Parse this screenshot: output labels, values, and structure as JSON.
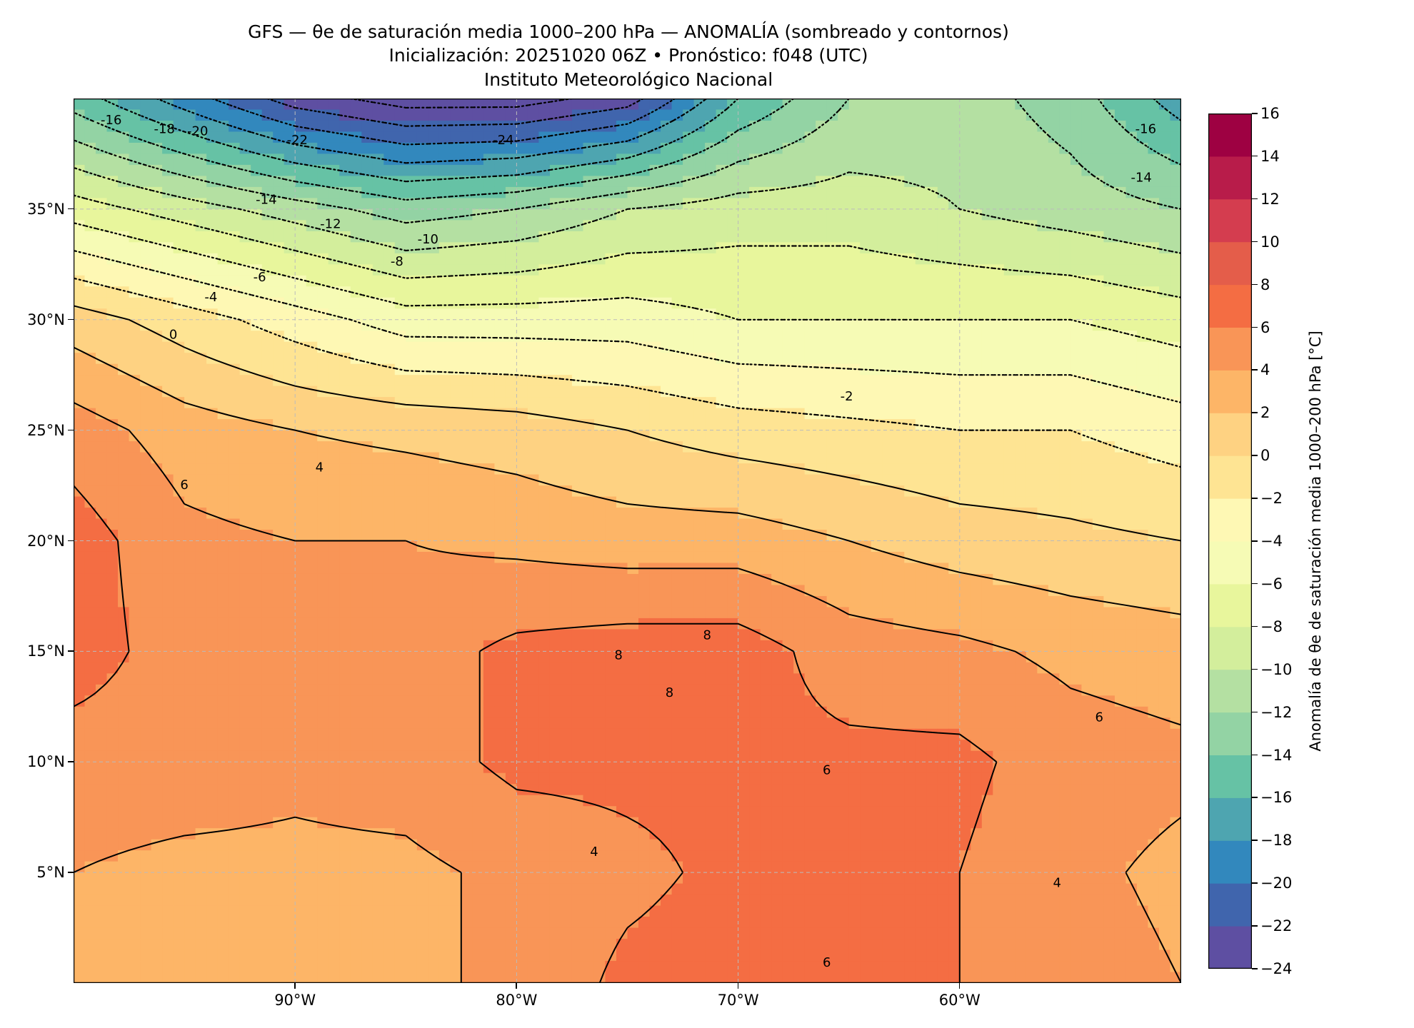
{
  "chart_data": {
    "type": "heatmap",
    "title": "GFS — θe de saturación media 1000–200 hPa — ANOMALÍA (sombreado y contornos)",
    "subtitle": "Inicialización: 20251020 06Z   •   Pronóstico: f048 (UTC)",
    "institution": "Instituto Meteorológico Nacional",
    "xlim": [
      -100,
      -50
    ],
    "ylim": [
      0,
      40
    ],
    "x_ticks": [
      {
        "value": -90,
        "label": "90°W"
      },
      {
        "value": -80,
        "label": "80°W"
      },
      {
        "value": -70,
        "label": "70°W"
      },
      {
        "value": -60,
        "label": "60°W"
      }
    ],
    "y_ticks": [
      {
        "value": 35,
        "label": "35°N"
      },
      {
        "value": 30,
        "label": "30°N"
      },
      {
        "value": 25,
        "label": "25°N"
      },
      {
        "value": 20,
        "label": "20°N"
      },
      {
        "value": 15,
        "label": "15°N"
      },
      {
        "value": 10,
        "label": "10°N"
      },
      {
        "value": 5,
        "label": "5°N"
      }
    ],
    "grid": true,
    "field": {
      "lons": [
        -100,
        -95,
        -90,
        -85,
        -80,
        -75,
        -70,
        -65,
        -60,
        -55,
        -50
      ],
      "lats": [
        40,
        35,
        30,
        25,
        20,
        15,
        10,
        5,
        0
      ],
      "values": [
        [
          -15,
          -19,
          -23,
          -25,
          -25,
          -23,
          -16,
          -12,
          -11,
          -13,
          -17
        ],
        [
          -7,
          -9,
          -11,
          -13,
          -12,
          -10,
          -9,
          -9,
          -10,
          -11,
          -12
        ],
        [
          1,
          -1,
          -3,
          -5,
          -5,
          -5,
          -6,
          -6,
          -6,
          -6,
          -7
        ],
        [
          5,
          3,
          2,
          1.5,
          1,
          0,
          -1,
          -1.5,
          -2,
          -2,
          -3
        ],
        [
          7,
          4.5,
          4,
          4,
          3.5,
          3,
          3,
          2,
          1,
          0.5,
          0
        ],
        [
          7,
          5,
          4.5,
          5,
          6.5,
          7,
          7,
          5,
          4.5,
          3.5,
          3
        ],
        [
          5,
          5,
          4.5,
          5,
          6.5,
          6.5,
          6.5,
          6.5,
          6.5,
          5,
          4.5
        ],
        [
          4,
          3.5,
          3.5,
          3.5,
          4.5,
          5.5,
          6.5,
          6.5,
          6,
          4.5,
          3.5
        ],
        [
          3.5,
          3.5,
          3.5,
          3.5,
          4.5,
          6.5,
          7,
          7,
          6,
          5,
          4
        ]
      ]
    },
    "levels": [
      -24,
      -22,
      -20,
      -18,
      -16,
      -14,
      -12,
      -10,
      -8,
      -6,
      -4,
      -2,
      0,
      2,
      4,
      6,
      8,
      10,
      12,
      14,
      16
    ],
    "colors": [
      "#5e4fa2",
      "#4065ad",
      "#3288bd",
      "#4ea5b0",
      "#66c2a5",
      "#93d3a4",
      "#b4e0a2",
      "#d3ee9c",
      "#e8f69c",
      "#f6fbb5",
      "#fef8b4",
      "#fee493",
      "#fed282",
      "#fdb567",
      "#f99557",
      "#f46d43",
      "#e45d4a",
      "#d43d4f",
      "#b81c4a",
      "#9e0142"
    ],
    "colorbar": {
      "label": "Anomalía de θe de saturación media 1000–200 hPa [°C]",
      "tick_labels": [
        "16",
        "14",
        "12",
        "10",
        "8",
        "6",
        "4",
        "2",
        "0",
        "−2",
        "−4",
        "−6",
        "−8",
        "−10",
        "−12",
        "−14",
        "−16",
        "−18",
        "−20",
        "−22",
        "−24"
      ]
    },
    "contour_labels": [
      {
        "text": "-16",
        "lon": -98.3,
        "lat": 39.0
      },
      {
        "text": "-18",
        "lon": -95.9,
        "lat": 38.6
      },
      {
        "text": "-20",
        "lon": -94.4,
        "lat": 38.5
      },
      {
        "text": "-22",
        "lon": -89.9,
        "lat": 38.1
      },
      {
        "text": "-24",
        "lon": -80.6,
        "lat": 38.1
      },
      {
        "text": "-14",
        "lon": -91.3,
        "lat": 35.4
      },
      {
        "text": "-12",
        "lon": -88.4,
        "lat": 34.3
      },
      {
        "text": "-10",
        "lon": -84.0,
        "lat": 33.6
      },
      {
        "text": "-8",
        "lon": -85.4,
        "lat": 32.6
      },
      {
        "text": "-6",
        "lon": -91.6,
        "lat": 31.9
      },
      {
        "text": "-4",
        "lon": -93.8,
        "lat": 31.0
      },
      {
        "text": "0",
        "lon": -95.5,
        "lat": 29.3
      },
      {
        "text": "-2",
        "lon": -65.1,
        "lat": 26.5
      },
      {
        "text": "4",
        "lon": -88.9,
        "lat": 23.3
      },
      {
        "text": "6",
        "lon": -95.0,
        "lat": 22.5
      },
      {
        "text": "8",
        "lon": -71.4,
        "lat": 15.7
      },
      {
        "text": "8",
        "lon": -75.4,
        "lat": 14.8
      },
      {
        "text": "8",
        "lon": -73.1,
        "lat": 13.1
      },
      {
        "text": "6",
        "lon": -53.7,
        "lat": 12.0
      },
      {
        "text": "6",
        "lon": -66.0,
        "lat": 9.6
      },
      {
        "text": "4",
        "lon": -55.6,
        "lat": 4.5
      },
      {
        "text": "4",
        "lon": -76.5,
        "lat": 5.9
      },
      {
        "text": "6",
        "lon": -66.0,
        "lat": 0.9
      },
      {
        "text": "-16",
        "lon": -51.6,
        "lat": 38.6
      },
      {
        "text": "-14",
        "lon": -51.8,
        "lat": 36.4
      }
    ]
  }
}
